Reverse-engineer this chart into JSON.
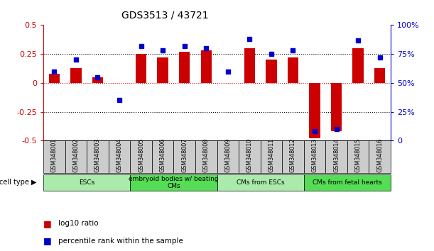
{
  "title": "GDS3513 / 43721",
  "samples": [
    "GSM348001",
    "GSM348002",
    "GSM348003",
    "GSM348004",
    "GSM348005",
    "GSM348006",
    "GSM348007",
    "GSM348008",
    "GSM348009",
    "GSM348010",
    "GSM348011",
    "GSM348012",
    "GSM348013",
    "GSM348014",
    "GSM348015",
    "GSM348016"
  ],
  "log10_ratio": [
    0.08,
    0.13,
    0.05,
    0.0,
    0.25,
    0.22,
    0.27,
    0.28,
    0.0,
    0.3,
    0.2,
    0.22,
    -0.48,
    -0.42,
    0.3,
    0.13
  ],
  "percentile_rank": [
    60,
    70,
    55,
    35,
    82,
    78,
    82,
    80,
    60,
    88,
    75,
    78,
    8,
    10,
    87,
    72
  ],
  "cell_type_groups": [
    {
      "label": "ESCs",
      "start": 0,
      "end": 3,
      "color": "#aaeaaa"
    },
    {
      "label": "embryoid bodies w/ beating\nCMs",
      "start": 4,
      "end": 7,
      "color": "#55dd55"
    },
    {
      "label": "CMs from ESCs",
      "start": 8,
      "end": 11,
      "color": "#aaeaaa"
    },
    {
      "label": "CMs from fetal hearts",
      "start": 12,
      "end": 15,
      "color": "#55dd55"
    }
  ],
  "bar_color": "#CC0000",
  "dot_color": "#0000CC",
  "left_axis_color": "#CC0000",
  "right_axis_color": "#0000CC",
  "yticks_left": [
    0.5,
    0.25,
    0.0,
    -0.25,
    -0.5
  ],
  "ytick_labels_left": [
    "0.5",
    "0.25",
    "0",
    "-0.25",
    "-0.5"
  ],
  "yticks_right": [
    100,
    75,
    50,
    25,
    0
  ],
  "ytick_labels_right": [
    "100%",
    "75%",
    "50%",
    "25%",
    "0"
  ],
  "ylim_left": [
    -0.5,
    0.5
  ],
  "ylim_right": [
    0,
    100
  ],
  "background_color": "#ffffff",
  "bar_width": 0.5,
  "sample_box_color": "#cccccc",
  "legend_items": [
    {
      "color": "#CC0000",
      "label": "log10 ratio"
    },
    {
      "color": "#0000CC",
      "label": "percentile rank within the sample"
    }
  ]
}
